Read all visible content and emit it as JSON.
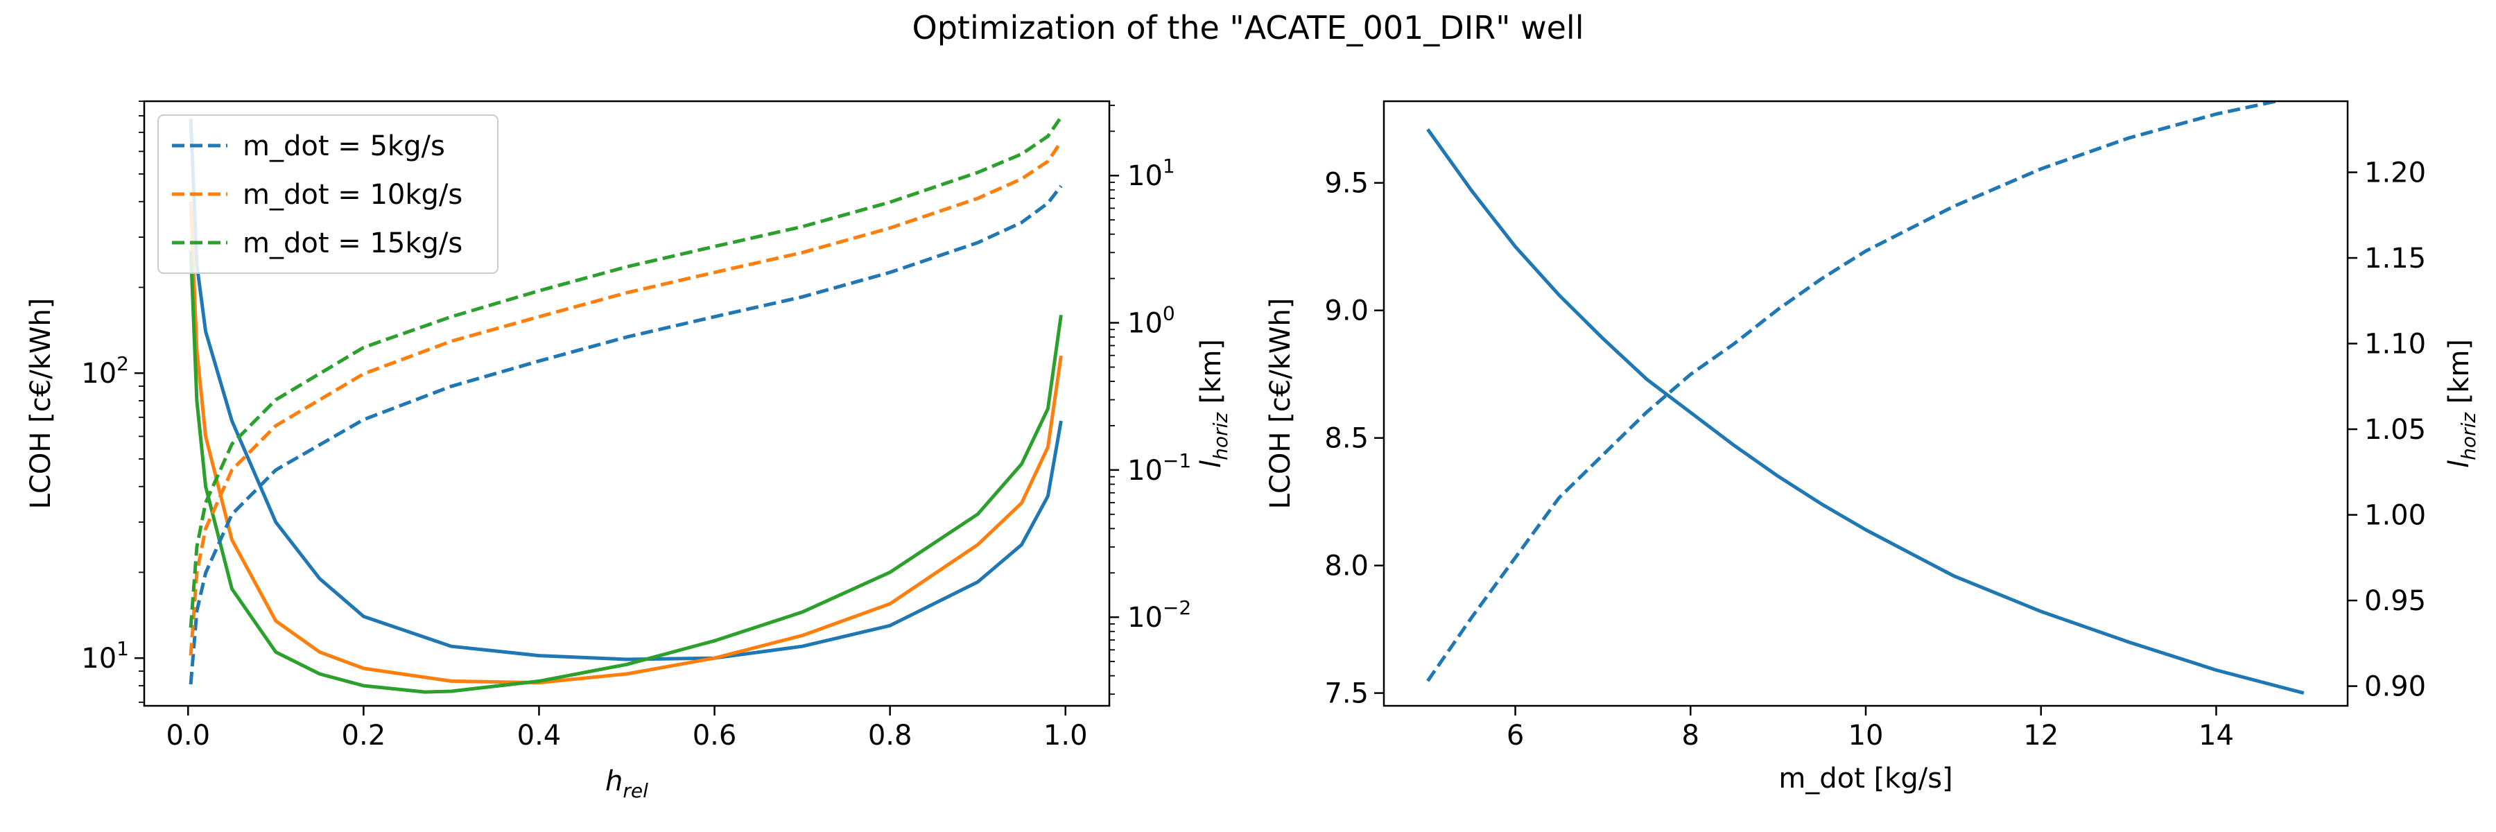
{
  "figure": {
    "title": "Optimization of the \"ACATE_001_DIR\" well"
  },
  "chart_data": [
    {
      "type": "line",
      "name": "left-panel",
      "xlabel_main": "h",
      "xlabel_sub": "rel",
      "ylabel": "LCOH [c€/kWh]",
      "ylabel_right_main": "l",
      "ylabel_right_sub": "horiz",
      "ylabel_right_unit": " [km]",
      "xlim": [
        -0.05,
        1.05
      ],
      "ylim": [
        6.8,
        900
      ],
      "ylim_right": [
        0.0025,
        32
      ],
      "y_scale": "log",
      "y_right_scale": "log",
      "x_ticks": [
        "0.0",
        "0.2",
        "0.4",
        "0.6",
        "0.8",
        "1.0"
      ],
      "y_ticks": [
        {
          "value": 10,
          "base": "10",
          "exp": "1"
        },
        {
          "value": 100,
          "base": "10",
          "exp": "2"
        }
      ],
      "y_right_ticks": [
        {
          "value": 0.01,
          "base": "10",
          "exp": "−2"
        },
        {
          "value": 0.1,
          "base": "10",
          "exp": "−1"
        },
        {
          "value": 1,
          "base": "10",
          "exp": "0"
        },
        {
          "value": 10,
          "base": "10",
          "exp": "1"
        }
      ],
      "legend_position": "upper-left",
      "legend": [
        {
          "label": "m_dot = 5kg/s",
          "color": "#1f77b4"
        },
        {
          "label": "m_dot = 10kg/s",
          "color": "#ff7f0e"
        },
        {
          "label": "m_dot = 15kg/s",
          "color": "#2ca02c"
        }
      ],
      "series": [
        {
          "color": "#1f77b4",
          "style": "solid",
          "axis": "left",
          "x": [
            0.003,
            0.01,
            0.02,
            0.05,
            0.1,
            0.15,
            0.2,
            0.3,
            0.4,
            0.5,
            0.6,
            0.7,
            0.8,
            0.9,
            0.95,
            0.98,
            0.995
          ],
          "y": [
            780,
            240,
            140,
            68,
            30,
            19,
            14,
            11,
            10.2,
            9.9,
            10.0,
            11.0,
            13.0,
            18.5,
            25,
            37,
            68
          ]
        },
        {
          "color": "#ff7f0e",
          "style": "solid",
          "axis": "left",
          "x": [
            0.003,
            0.01,
            0.02,
            0.05,
            0.1,
            0.15,
            0.2,
            0.3,
            0.4,
            0.5,
            0.6,
            0.7,
            0.8,
            0.9,
            0.95,
            0.98,
            0.995
          ],
          "y": [
            400,
            120,
            60,
            26,
            13.5,
            10.5,
            9.2,
            8.3,
            8.2,
            8.8,
            10.0,
            12.0,
            15.5,
            25,
            35,
            55,
            115
          ]
        },
        {
          "color": "#2ca02c",
          "style": "solid",
          "axis": "left",
          "x": [
            0.003,
            0.01,
            0.02,
            0.05,
            0.1,
            0.15,
            0.2,
            0.27,
            0.3,
            0.4,
            0.5,
            0.6,
            0.7,
            0.8,
            0.9,
            0.95,
            0.98,
            0.995
          ],
          "y": [
            270,
            80,
            40,
            17.5,
            10.5,
            8.8,
            8.0,
            7.6,
            7.65,
            8.3,
            9.5,
            11.5,
            14.5,
            20,
            32,
            48,
            75,
            160
          ]
        },
        {
          "color": "#1f77b4",
          "style": "dashed",
          "axis": "right",
          "x": [
            0.003,
            0.01,
            0.02,
            0.05,
            0.1,
            0.2,
            0.3,
            0.4,
            0.5,
            0.6,
            0.7,
            0.8,
            0.9,
            0.95,
            0.98,
            0.995
          ],
          "y": [
            0.0035,
            0.011,
            0.02,
            0.05,
            0.1,
            0.22,
            0.37,
            0.55,
            0.8,
            1.1,
            1.5,
            2.2,
            3.5,
            4.8,
            6.5,
            8.5
          ]
        },
        {
          "color": "#ff7f0e",
          "style": "dashed",
          "axis": "right",
          "x": [
            0.003,
            0.01,
            0.02,
            0.05,
            0.1,
            0.2,
            0.3,
            0.4,
            0.5,
            0.6,
            0.7,
            0.8,
            0.9,
            0.95,
            0.98,
            0.995
          ],
          "y": [
            0.0055,
            0.02,
            0.04,
            0.1,
            0.2,
            0.45,
            0.75,
            1.1,
            1.6,
            2.2,
            3.0,
            4.4,
            7.0,
            9.5,
            12.5,
            17
          ]
        },
        {
          "color": "#2ca02c",
          "style": "dashed",
          "axis": "right",
          "x": [
            0.003,
            0.01,
            0.02,
            0.05,
            0.1,
            0.2,
            0.3,
            0.4,
            0.5,
            0.6,
            0.7,
            0.8,
            0.9,
            0.95,
            0.98,
            0.995
          ],
          "y": [
            0.0085,
            0.03,
            0.06,
            0.15,
            0.3,
            0.68,
            1.1,
            1.65,
            2.4,
            3.3,
            4.5,
            6.6,
            10.5,
            14,
            18.5,
            25
          ]
        }
      ]
    },
    {
      "type": "line",
      "name": "right-panel",
      "xlabel": "m_dot [kg/s]",
      "ylabel": "LCOH [c€/kWh]",
      "ylabel_right_main": "l",
      "ylabel_right_sub": "horiz",
      "ylabel_right_unit": " [km]",
      "xlim": [
        4.5,
        15.5
      ],
      "ylim": [
        7.45,
        9.82
      ],
      "ylim_right": [
        0.8885,
        1.2415
      ],
      "x_ticks": [
        {
          "value": 6,
          "label": "6"
        },
        {
          "value": 8,
          "label": "8"
        },
        {
          "value": 10,
          "label": "10"
        },
        {
          "value": 12,
          "label": "12"
        },
        {
          "value": 14,
          "label": "14"
        }
      ],
      "y_ticks": [
        {
          "value": 7.5,
          "label": "7.5"
        },
        {
          "value": 8.0,
          "label": "8.0"
        },
        {
          "value": 8.5,
          "label": "8.5"
        },
        {
          "value": 9.0,
          "label": "9.0"
        },
        {
          "value": 9.5,
          "label": "9.5"
        }
      ],
      "y_right_ticks": [
        {
          "value": 0.9,
          "label": "0.90"
        },
        {
          "value": 0.95,
          "label": "0.95"
        },
        {
          "value": 1.0,
          "label": "1.00"
        },
        {
          "value": 1.05,
          "label": "1.05"
        },
        {
          "value": 1.1,
          "label": "1.10"
        },
        {
          "value": 1.15,
          "label": "1.15"
        },
        {
          "value": 1.2,
          "label": "1.20"
        }
      ],
      "series": [
        {
          "color": "#1f77b4",
          "style": "solid",
          "axis": "left",
          "x": [
            5,
            5.5,
            6,
            6.5,
            7,
            7.5,
            8,
            8.5,
            9,
            9.5,
            10,
            11,
            12,
            13,
            14,
            15
          ],
          "y": [
            9.71,
            9.47,
            9.25,
            9.06,
            8.89,
            8.73,
            8.6,
            8.47,
            8.35,
            8.24,
            8.14,
            7.96,
            7.82,
            7.7,
            7.59,
            7.5
          ]
        },
        {
          "color": "#1f77b4",
          "style": "dashed",
          "axis": "right",
          "x": [
            5,
            5.5,
            6,
            6.5,
            7,
            7.5,
            8,
            8.5,
            9,
            9.5,
            10,
            11,
            12,
            13,
            14,
            15
          ],
          "y": [
            0.903,
            0.94,
            0.975,
            1.01,
            1.035,
            1.06,
            1.082,
            1.1,
            1.12,
            1.138,
            1.154,
            1.18,
            1.202,
            1.22,
            1.234,
            1.245
          ]
        }
      ]
    }
  ]
}
